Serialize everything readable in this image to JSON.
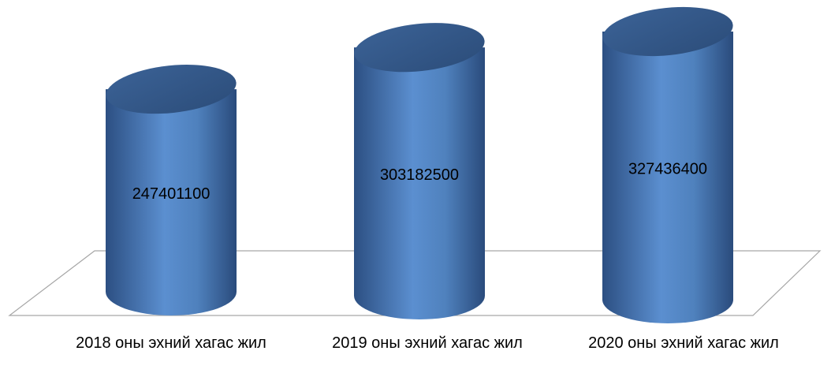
{
  "chart_data": {
    "type": "cylinder",
    "categories": [
      "2018 оны эхний хагас жил",
      "2019 оны эхний хагас жил",
      "2020 оны эхний хагас жил"
    ],
    "values": [
      247401100,
      303182500,
      327436400
    ],
    "color": "#4f81bd"
  }
}
